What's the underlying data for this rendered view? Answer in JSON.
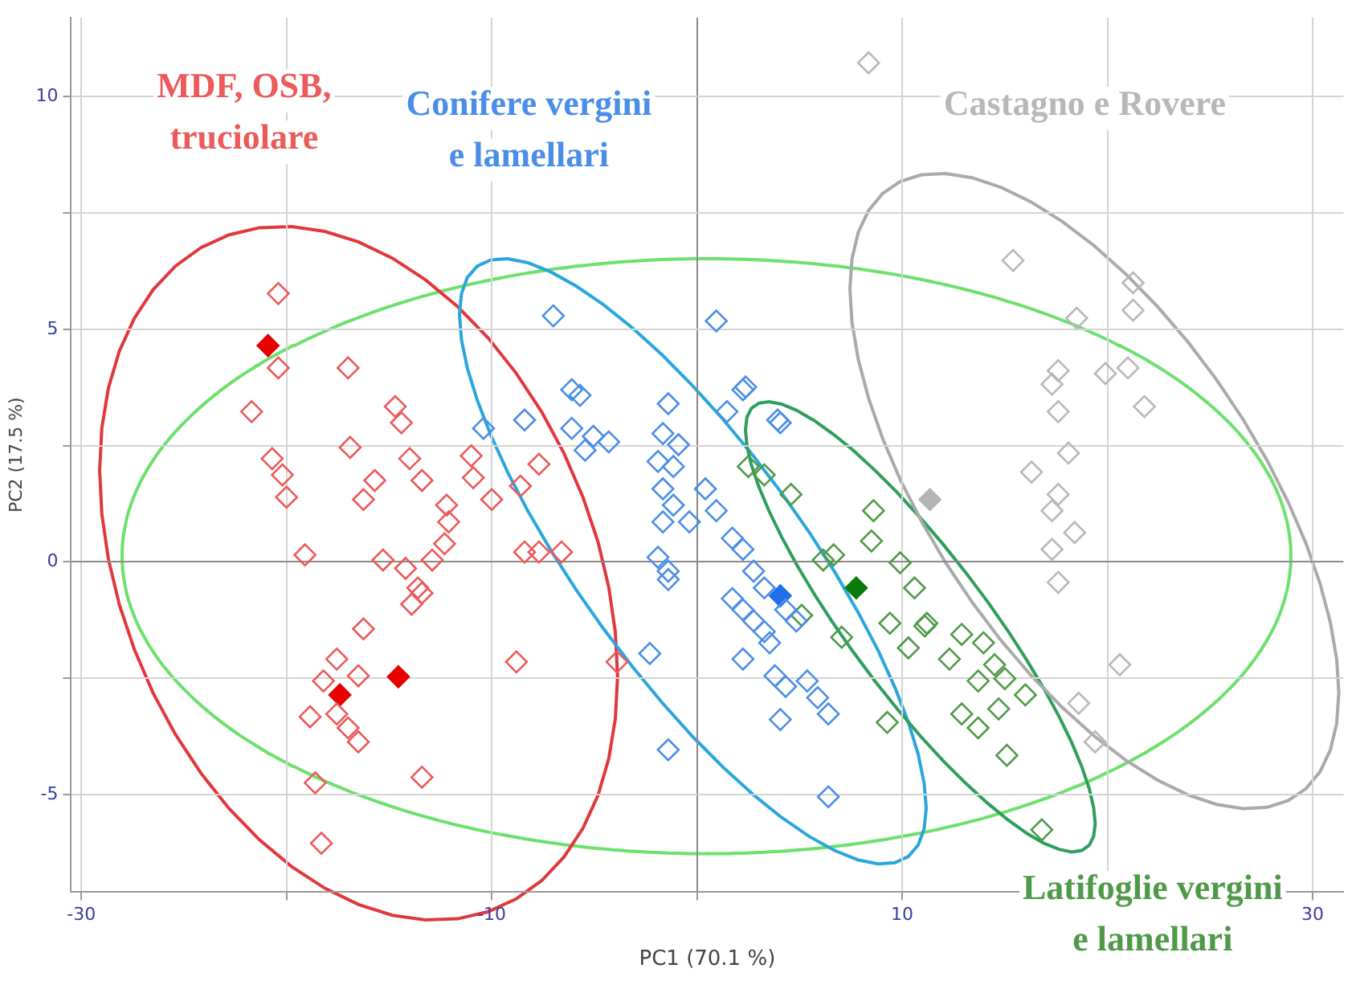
{
  "chart_data": {
    "type": "scatter",
    "xlabel": "PC1 (70.1 %)",
    "ylabel": "PC2 (17.5 %)",
    "xlim": [
      -30.5,
      31.5
    ],
    "ylim": [
      -7.1,
      11.7
    ],
    "xticks": [
      -30,
      {
        "value": -20,
        "label": null
      },
      -10,
      {
        "value": 0,
        "label": null
      },
      10,
      {
        "value": 20,
        "label": null
      },
      30
    ],
    "yticks": [
      -5,
      {
        "value": -2.5,
        "label": null
      },
      0,
      {
        "value": 2.5,
        "label": null
      },
      5,
      {
        "value": 7.5,
        "label": null
      },
      10
    ],
    "grid": true,
    "legend": false,
    "marker": "diamond",
    "series": [
      {
        "name": "MDF, OSB, truciolare",
        "type": "scatter",
        "color": "#ec5a5a",
        "x": [
          -20.4,
          -20.4,
          -17.0,
          -21.7,
          -14.7,
          -14.4,
          -16.9,
          -20.7,
          -20.2,
          -20.0,
          -14.0,
          -13.4,
          -15.7,
          -16.25,
          -11.0,
          -10.9,
          -10.0,
          -12.2,
          -12.1,
          -12.3,
          -8.6,
          -7.7,
          -19.1,
          -15.3,
          -14.2,
          -12.9,
          -8.4,
          -7.7,
          -6.6,
          -13.6,
          -13.4,
          -13.9,
          -16.25,
          -8.8,
          -3.9,
          -17.55,
          -16.5,
          -18.2,
          -18.85,
          -17.55,
          -17.0,
          -16.5,
          -18.6,
          -13.4,
          -18.3
        ],
        "values": [
          5.77,
          4.17,
          4.17,
          3.23,
          3.34,
          2.99,
          2.46,
          2.22,
          1.87,
          1.39,
          2.22,
          1.75,
          1.75,
          1.34,
          2.28,
          1.81,
          1.34,
          1.22,
          0.86,
          0.39,
          1.63,
          2.1,
          0.15,
          0.04,
          -0.14,
          0.04,
          0.21,
          0.21,
          0.21,
          -0.56,
          -0.67,
          -0.91,
          -1.44,
          -2.15,
          -2.15,
          -2.09,
          -2.45,
          -2.56,
          -3.33,
          -3.27,
          -3.57,
          -3.87,
          -4.75,
          -4.63,
          -6.05
        ]
      },
      {
        "name": "Conifere vergini e lamellari",
        "type": "scatter",
        "color": "#4a8ee8",
        "x": [
          -7.0,
          0.94,
          -6.1,
          -5.7,
          -8.4,
          -10.4,
          -6.1,
          -4.3,
          -5.45,
          -5.05,
          -1.4,
          -1.66,
          -0.9,
          -1.15,
          -1.9,
          1.46,
          2.37,
          3.93,
          0.41,
          0.94,
          -1.66,
          -1.15,
          -1.66,
          -0.37,
          -1.9,
          -1.4,
          -1.4,
          1.72,
          2.24,
          2.76,
          1.72,
          2.24,
          2.76,
          3.28,
          3.54,
          2.24,
          3.8,
          4.32,
          5.37,
          5.88,
          6.4,
          4.06,
          3.28,
          4.32,
          4.84,
          -2.3,
          -1.4,
          6.4,
          2.24,
          4.06
        ],
        "values": [
          5.29,
          5.18,
          3.7,
          3.58,
          3.05,
          2.87,
          2.87,
          2.58,
          2.4,
          2.7,
          3.4,
          2.76,
          2.52,
          2.05,
          2.16,
          3.23,
          3.76,
          3.05,
          1.57,
          1.1,
          1.57,
          1.22,
          0.86,
          0.86,
          0.1,
          -0.2,
          -0.38,
          0.51,
          0.27,
          -0.2,
          -0.79,
          -1.03,
          -1.27,
          -1.5,
          -1.74,
          -2.09,
          -2.45,
          -2.68,
          -2.56,
          -2.92,
          -3.27,
          -3.39,
          -0.56,
          -1.03,
          -1.27,
          -1.97,
          -4.04,
          -5.05,
          3.7,
          2.99
        ]
      },
      {
        "name": "Castagno e Rovere",
        "type": "scatter",
        "color": "#b8b8b8",
        "x": [
          8.36,
          15.4,
          21.25,
          18.5,
          21.25,
          17.6,
          17.3,
          19.9,
          21.0,
          21.8,
          17.6,
          18.1,
          16.3,
          17.6,
          17.3,
          18.4,
          17.3,
          17.6,
          20.6,
          18.6,
          19.4
        ],
        "values": [
          10.73,
          6.48,
          6.0,
          5.24,
          5.41,
          4.11,
          3.82,
          4.05,
          4.17,
          3.34,
          3.23,
          2.34,
          1.93,
          1.45,
          1.1,
          0.63,
          0.27,
          -0.44,
          -2.21,
          -3.04,
          -3.87
        ]
      },
      {
        "name": "Latifoglie vergini e lamellari",
        "type": "scatter",
        "color": "#4f9a48",
        "x": [
          2.5,
          3.28,
          4.58,
          8.6,
          8.5,
          6.66,
          9.9,
          10.6,
          9.4,
          11.2,
          10.3,
          12.9,
          12.3,
          13.96,
          14.5,
          13.7,
          15.0,
          16.0,
          14.7,
          12.9,
          13.7,
          15.1,
          9.27,
          16.8,
          5.1,
          7.05,
          6.15,
          11.1
        ],
        "values": [
          2.05,
          1.87,
          1.45,
          1.1,
          0.45,
          0.15,
          -0.02,
          -0.56,
          -1.32,
          -1.32,
          -1.85,
          -1.56,
          -2.09,
          -1.74,
          -2.21,
          -2.56,
          -2.51,
          -2.86,
          -3.16,
          -3.27,
          -3.57,
          -4.16,
          -3.45,
          -5.76,
          -1.15,
          -1.62,
          0.04,
          -1.38
        ]
      },
      {
        "type": "scatter",
        "color": "#e80000",
        "x": [
          -20.9,
          -17.4,
          -14.55
        ],
        "values": [
          4.65,
          -2.86,
          -2.47
        ]
      },
      {
        "type": "scatter",
        "color": "#1f6fe8",
        "x": [
          4.06
        ],
        "values": [
          -0.73
        ]
      },
      {
        "type": "scatter",
        "color": "#0a7a0a",
        "x": [
          7.76
        ],
        "values": [
          -0.56
        ]
      },
      {
        "type": "scatter",
        "color": "#b4b4b4",
        "x": [
          11.35
        ],
        "values": [
          1.34
        ]
      }
    ]
  }
}
